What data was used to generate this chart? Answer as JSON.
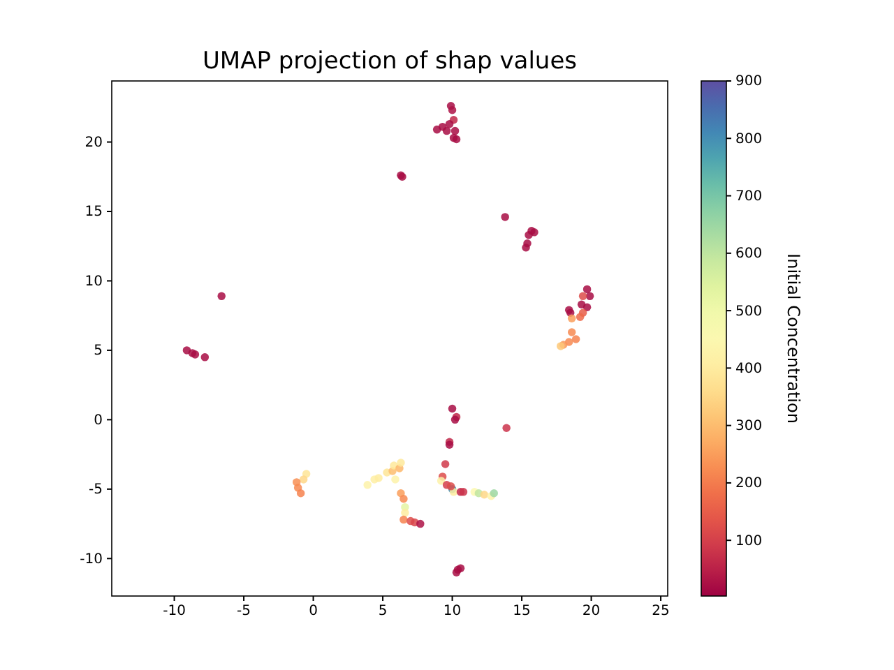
{
  "chart_data": {
    "type": "scatter",
    "title": "UMAP projection of shap values",
    "clabel": "Initial Concentration",
    "xlim": [
      -14.5,
      25.5
    ],
    "xticks": [
      -10,
      -5,
      0,
      5,
      10,
      15,
      20,
      25
    ],
    "ylim": [
      -12.7,
      24.4
    ],
    "yticks": [
      -10,
      -5,
      0,
      5,
      10,
      15,
      20
    ],
    "clim": [
      3,
      900
    ],
    "cticks": [
      100,
      200,
      300,
      400,
      500,
      600,
      700,
      800,
      900
    ],
    "grid": false,
    "marker": "circle",
    "series": [
      {
        "x": [
          9.9,
          10.0,
          10.1,
          9.8,
          8.9,
          9.3,
          9.6,
          10.2,
          10.1,
          10.3,
          13.8,
          15.7,
          15.5,
          15.9,
          15.4,
          15.3,
          6.3,
          6.4,
          -6.6,
          -9.1,
          -8.7,
          -8.5,
          -7.8,
          10.0,
          10.3,
          10.2,
          13.9,
          9.8,
          9.8,
          19.7,
          19.9,
          19.4,
          19.3,
          19.7,
          19.4,
          19.2,
          18.4,
          18.5,
          18.6,
          18.6,
          18.9,
          18.4,
          18.0,
          17.8,
          -0.5,
          -0.7,
          -1.2,
          -1.1,
          -0.9,
          3.9,
          4.4,
          4.7,
          5.3,
          5.7,
          5.8,
          6.2,
          6.3,
          5.9,
          6.3,
          6.5,
          6.6,
          6.6,
          6.5,
          7.0,
          7.3,
          7.7,
          9.5,
          9.3,
          9.2,
          9.6,
          10.0,
          10.1,
          9.9,
          10.6,
          10.8,
          11.6,
          11.9,
          12.3,
          12.8,
          13.0,
          10.4,
          10.6,
          10.3
        ],
        "values": [
          22.6,
          22.3,
          21.6,
          21.3,
          20.9,
          21.1,
          20.8,
          20.8,
          20.3,
          20.2,
          14.6,
          13.6,
          13.3,
          13.5,
          12.7,
          12.4,
          17.6,
          17.5,
          8.9,
          5.0,
          4.8,
          4.7,
          4.5,
          0.8,
          0.2,
          0.0,
          -0.6,
          -1.6,
          -1.8,
          9.4,
          8.9,
          8.9,
          8.3,
          8.1,
          7.7,
          7.4,
          7.9,
          7.7,
          7.3,
          6.3,
          5.8,
          5.6,
          5.4,
          5.3,
          -3.9,
          -4.3,
          -4.5,
          -4.9,
          -5.3,
          -4.7,
          -4.3,
          -4.2,
          -3.8,
          -3.7,
          -3.3,
          -3.5,
          -3.1,
          -4.3,
          -5.3,
          -5.7,
          -6.3,
          -6.7,
          -7.2,
          -7.3,
          -7.4,
          -7.5,
          -3.2,
          -4.1,
          -4.4,
          -4.7,
          -5.0,
          -5.2,
          -4.8,
          -5.2,
          -5.2,
          -5.2,
          -5.3,
          -5.4,
          -5.5,
          -5.3,
          -10.8,
          -10.7,
          -11.0
        ],
        "cvalues": [
          20,
          30,
          60,
          20,
          20,
          20,
          20,
          20,
          20,
          20,
          20,
          20,
          20,
          20,
          20,
          20,
          20,
          20,
          20,
          20,
          20,
          20,
          20,
          20,
          60,
          20,
          80,
          60,
          20,
          20,
          20,
          120,
          20,
          20,
          150,
          170,
          20,
          20,
          250,
          220,
          210,
          220,
          240,
          320,
          380,
          350,
          230,
          220,
          210,
          420,
          410,
          400,
          380,
          300,
          390,
          290,
          390,
          420,
          250,
          220,
          530,
          400,
          210,
          120,
          110,
          30,
          90,
          120,
          420,
          100,
          800,
          400,
          120,
          60,
          80,
          450,
          600,
          350,
          420,
          650,
          20,
          20,
          20
        ]
      }
    ]
  }
}
